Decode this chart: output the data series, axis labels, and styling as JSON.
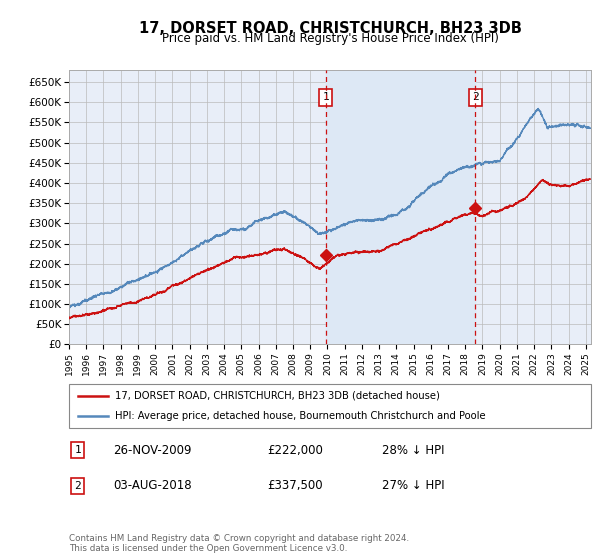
{
  "title": "17, DORSET ROAD, CHRISTCHURCH, BH23 3DB",
  "subtitle": "Price paid vs. HM Land Registry's House Price Index (HPI)",
  "legend_line1": "17, DORSET ROAD, CHRISTCHURCH, BH23 3DB (detached house)",
  "legend_line2": "HPI: Average price, detached house, Bournemouth Christchurch and Poole",
  "annotation1_label": "1",
  "annotation1_date": "26-NOV-2009",
  "annotation1_price": "£222,000",
  "annotation1_hpi": "28% ↓ HPI",
  "annotation2_label": "2",
  "annotation2_date": "03-AUG-2018",
  "annotation2_price": "£337,500",
  "annotation2_hpi": "27% ↓ HPI",
  "footer": "Contains HM Land Registry data © Crown copyright and database right 2024.\nThis data is licensed under the Open Government Licence v3.0.",
  "hpi_color": "#5588bb",
  "sale_color": "#cc1111",
  "background_color": "#ffffff",
  "plot_bg_color": "#e8eef8",
  "shade_color": "#dde8f5",
  "grid_color": "#bbbbbb",
  "ylim": [
    0,
    680000
  ],
  "yticks": [
    0,
    50000,
    100000,
    150000,
    200000,
    250000,
    300000,
    350000,
    400000,
    450000,
    500000,
    550000,
    600000,
    650000
  ],
  "sale1_x": 2009.91,
  "sale1_y": 222000,
  "sale2_x": 2018.59,
  "sale2_y": 337500,
  "xlim_left": 1995.0,
  "xlim_right": 2025.3
}
